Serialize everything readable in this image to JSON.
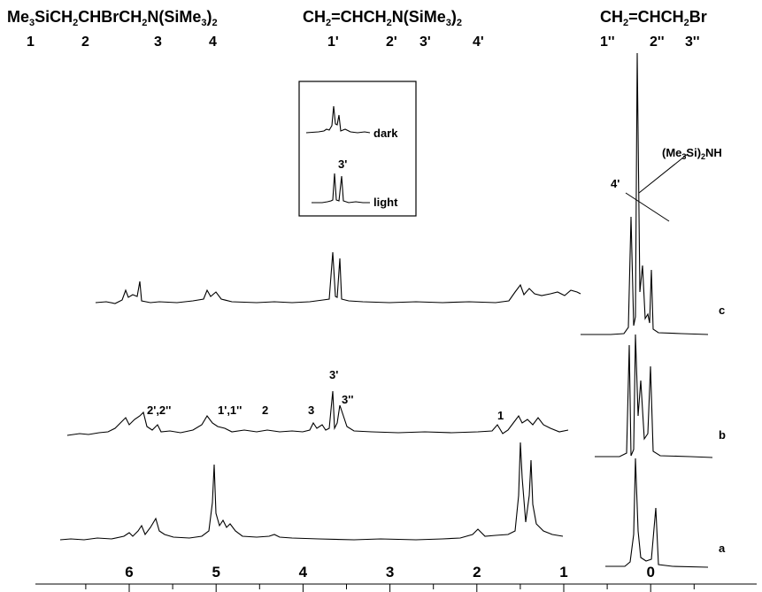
{
  "header": {
    "compounds": [
      {
        "main": "Me",
        "sub1": "3",
        "mid1": "SiCH",
        "sub2": "2",
        "mid2": "CHBrCH",
        "sub3": "2",
        "mid3": "N(SiMe",
        "sub4": "3",
        "tail": ")",
        "sub5": "2",
        "numbers": [
          "1",
          "2",
          "3",
          "4"
        ]
      },
      {
        "p1": "CH",
        "s1": "2",
        "p2": "=CHCH",
        "s2": "2",
        "p3": "N(SiMe",
        "s3": "3",
        "p4": ")",
        "s4": "2",
        "numbers": [
          "1'",
          "2'",
          "3'",
          "4'"
        ]
      },
      {
        "p1": "CH",
        "s1": "2",
        "p2": "=CHCH",
        "s2": "2",
        "p3": "Br",
        "numbers": [
          "1''",
          "2''",
          "3''"
        ]
      }
    ]
  },
  "inset": {
    "labels": [
      "dark",
      "3'",
      "light"
    ]
  },
  "peak_labels": {
    "hmds": {
      "p1": "(Me",
      "s1": "3",
      "p2": "Si)",
      "s2": "2",
      "p3": "NH"
    },
    "four_prime": "4'",
    "b_labels": [
      "2',2''",
      "1',1''",
      "2",
      "3",
      "3'",
      "3''",
      "1"
    ]
  },
  "chart_data": {
    "type": "line",
    "title": "",
    "xlabel": "",
    "ylabel": "",
    "x_axis": {
      "ticks": [
        "6",
        "5",
        "4",
        "3",
        "2",
        "1",
        "0"
      ],
      "range": [
        6.5,
        -0.8
      ],
      "reversed": true
    },
    "series": [
      {
        "name": "a",
        "values": [
          [
            6.2,
            0.03
          ],
          [
            5.0,
            0.85
          ],
          [
            4.8,
            0.3
          ],
          [
            1.5,
            0.9
          ],
          [
            1.4,
            0.85
          ],
          [
            0.3,
            1.0
          ],
          [
            0.0,
            0.55
          ]
        ]
      },
      {
        "name": "b",
        "values": [
          [
            6.2,
            0.2
          ],
          [
            5.0,
            0.2
          ],
          [
            3.65,
            0.6
          ],
          [
            3.55,
            0.35
          ],
          [
            1.7,
            0.1
          ],
          [
            0.3,
            1.0
          ],
          [
            0.1,
            0.45
          ]
        ]
      },
      {
        "name": "c",
        "values": [
          [
            6.0,
            0.3
          ],
          [
            5.0,
            0.1
          ],
          [
            3.65,
            0.6
          ],
          [
            3.55,
            0.55
          ],
          [
            1.5,
            0.2
          ],
          [
            0.3,
            0.95
          ],
          [
            0.2,
            1.0
          ],
          [
            0.05,
            0.4
          ]
        ]
      }
    ],
    "grid": false
  }
}
